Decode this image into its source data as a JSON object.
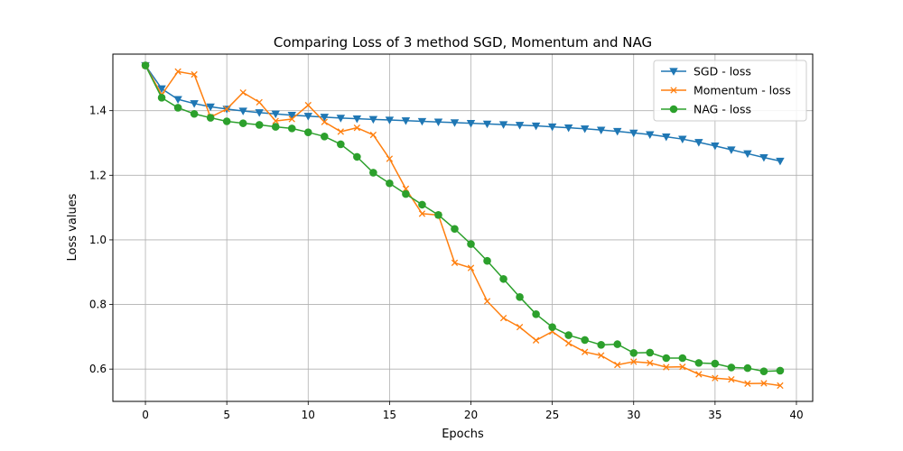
{
  "chart_data": {
    "type": "line",
    "title": "Comparing Loss of 3 method SGD, Momentum and NAG",
    "xlabel": "Epochs",
    "ylabel": "Loss values",
    "xlim": [
      -2,
      41
    ],
    "ylim": [
      0.5,
      1.575
    ],
    "xticks": [
      0,
      5,
      10,
      15,
      20,
      25,
      30,
      35,
      40
    ],
    "yticks": [
      0.6,
      0.8,
      1.0,
      1.2,
      1.4
    ],
    "xtick_labels": [
      "0",
      "5",
      "10",
      "15",
      "20",
      "25",
      "30",
      "35",
      "40"
    ],
    "ytick_labels": [
      "0.6",
      "0.8",
      "1.0",
      "1.2",
      "1.4"
    ],
    "grid": true,
    "legend_position": "top-right",
    "x": [
      0,
      1,
      2,
      3,
      4,
      5,
      6,
      7,
      8,
      9,
      10,
      11,
      12,
      13,
      14,
      15,
      16,
      17,
      18,
      19,
      20,
      21,
      22,
      23,
      24,
      25,
      26,
      27,
      28,
      29,
      30,
      31,
      32,
      33,
      34,
      35,
      36,
      37,
      38,
      39
    ],
    "series": [
      {
        "name": "SGD - loss",
        "color": "#1f77b4",
        "marker": "triangle-down",
        "values": [
          1.54,
          1.468,
          1.435,
          1.422,
          1.412,
          1.405,
          1.399,
          1.394,
          1.39,
          1.386,
          1.383,
          1.38,
          1.377,
          1.375,
          1.373,
          1.371,
          1.369,
          1.367,
          1.365,
          1.363,
          1.361,
          1.359,
          1.357,
          1.355,
          1.353,
          1.35,
          1.347,
          1.344,
          1.34,
          1.336,
          1.331,
          1.326,
          1.319,
          1.312,
          1.302,
          1.291,
          1.279,
          1.267,
          1.255,
          1.244
        ]
      },
      {
        "name": "Momentum - loss",
        "color": "#ff7f0e",
        "marker": "x",
        "values": [
          1.54,
          1.449,
          1.521,
          1.512,
          1.38,
          1.405,
          1.456,
          1.426,
          1.368,
          1.374,
          1.417,
          1.365,
          1.335,
          1.347,
          1.325,
          1.251,
          1.158,
          1.081,
          1.077,
          0.929,
          0.913,
          0.81,
          0.758,
          0.73,
          0.689,
          0.716,
          0.68,
          0.653,
          0.642,
          0.613,
          0.623,
          0.619,
          0.606,
          0.607,
          0.584,
          0.572,
          0.568,
          0.555,
          0.556,
          0.549
        ]
      },
      {
        "name": "NAG - loss",
        "color": "#2ca02c",
        "marker": "circle",
        "values": [
          1.54,
          1.44,
          1.409,
          1.39,
          1.378,
          1.367,
          1.361,
          1.356,
          1.35,
          1.345,
          1.333,
          1.32,
          1.296,
          1.257,
          1.208,
          1.175,
          1.142,
          1.109,
          1.077,
          1.034,
          0.987,
          0.935,
          0.879,
          0.823,
          0.77,
          0.73,
          0.705,
          0.69,
          0.675,
          0.677,
          0.65,
          0.651,
          0.634,
          0.634,
          0.619,
          0.617,
          0.605,
          0.603,
          0.593,
          0.595
        ]
      }
    ]
  }
}
